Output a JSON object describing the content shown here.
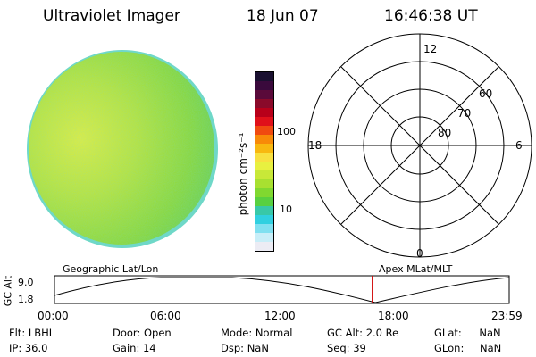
{
  "header": {
    "instrument": "Ultraviolet Imager",
    "date": "18 Jun 07",
    "time": "16:46:38 UT"
  },
  "colorbar": {
    "unit_label": "photon cm⁻²s⁻¹",
    "ticks": [
      "100",
      "10"
    ],
    "colors": [
      "#1a1030",
      "#3a0a3c",
      "#5a0a3a",
      "#8a0a2a",
      "#b8001a",
      "#e0101a",
      "#f04a10",
      "#f88a08",
      "#f8b810",
      "#f8e040",
      "#e8f040",
      "#c8e838",
      "#a8e030",
      "#80d830",
      "#58d040",
      "#38c8a8",
      "#30d0e0",
      "#80e0f0",
      "#c8eef8",
      "#ececf4"
    ]
  },
  "polar": {
    "mlt_labels": [
      "12",
      "18",
      "6",
      "0"
    ],
    "lat_labels": [
      "60",
      "70",
      "80"
    ]
  },
  "timeline": {
    "ylabel": "GC Alt",
    "y_ticks": [
      "9.0",
      "1.8"
    ],
    "left_title": "Geographic Lat/Lon",
    "right_title": "Apex MLat/MLT",
    "x_ticks": [
      "00:00",
      "06:00",
      "12:00",
      "18:00",
      "23:59"
    ],
    "current_time_fraction": 0.6991
  },
  "info": {
    "col1": [
      {
        "label": "Flt:",
        "value": "LBHL"
      },
      {
        "label": "IP:",
        "value": "36.0"
      }
    ],
    "col2": [
      {
        "label": "Door:",
        "value": "Open"
      },
      {
        "label": "Gain:",
        "value": "14"
      }
    ],
    "col3": [
      {
        "label": "Mode:",
        "value": "Normal"
      },
      {
        "label": "Dsp:",
        "value": "NaN"
      }
    ],
    "col4": [
      {
        "label": "GC Alt:",
        "value": "2.0 Re"
      },
      {
        "label": "Seq:",
        "value": "39"
      }
    ],
    "col5": [
      {
        "label": "GLat:",
        "value": "NaN"
      },
      {
        "label": "GLon:",
        "value": "NaN"
      }
    ]
  }
}
